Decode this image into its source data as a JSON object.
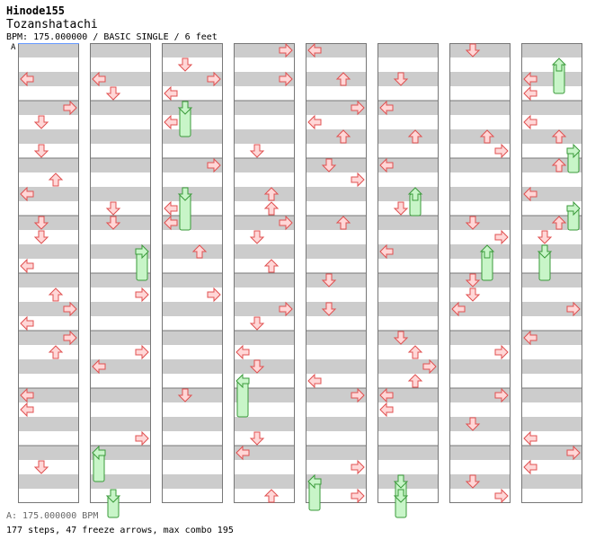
{
  "header": {
    "artist": "Hinode155",
    "title": "Tozanshatachi",
    "info": "BPM: 175.000000 / BASIC SINGLE / 6 feet"
  },
  "marker": "A",
  "footer": {
    "bpm_line": "A: 175.000000 BPM",
    "stats": "177 steps, 47 freeze arrows, max combo 195"
  },
  "colors": {
    "stripe": "#cccccc",
    "arrow_fill": "#ffd7d7",
    "arrow_stroke": "#e05050",
    "freeze_fill": "#c8f5c8",
    "freeze_stroke": "#3a9a3a",
    "border": "#777777"
  },
  "columns": [
    {
      "notes": []
    },
    {
      "notes": []
    },
    {
      "notes": []
    },
    {
      "notes": []
    },
    {
      "notes": []
    },
    {
      "notes": []
    },
    {
      "notes": []
    },
    {
      "notes": []
    }
  ]
}
